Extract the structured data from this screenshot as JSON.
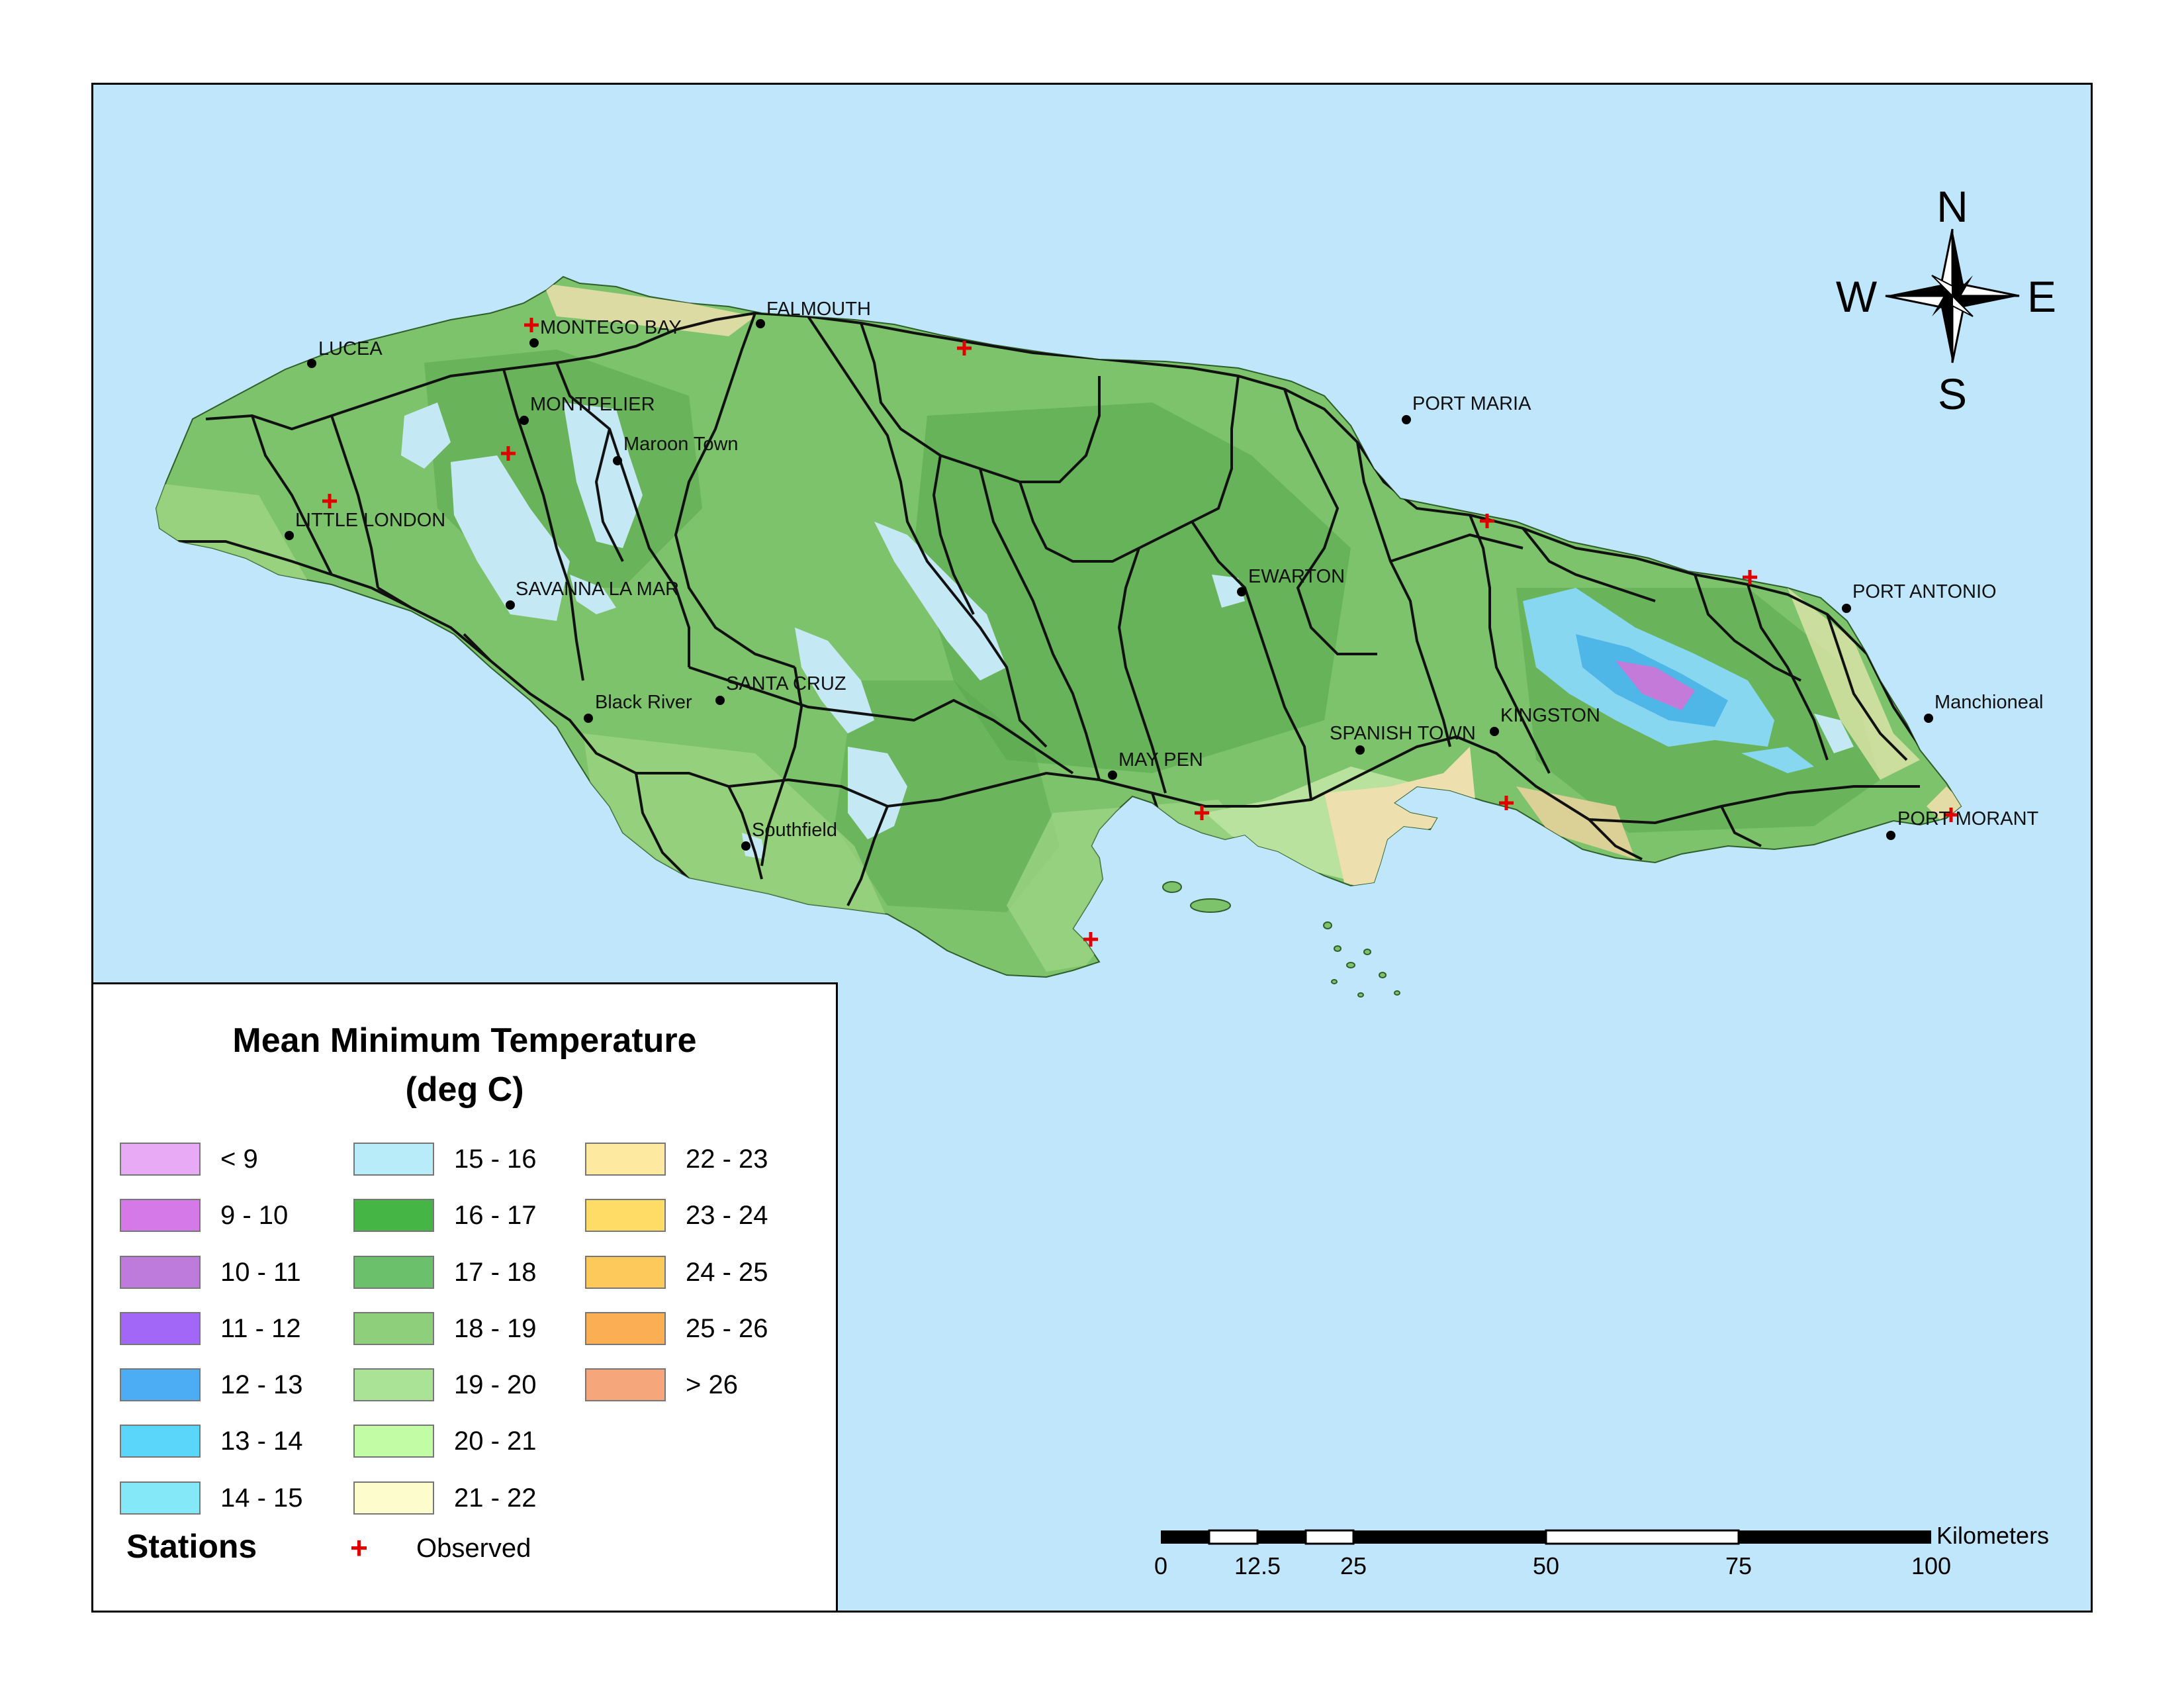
{
  "map": {
    "colors": {
      "sea": "#bfe6fb",
      "land_base": "#7cc36b",
      "land_dark": "#4e9e45",
      "lowland": "#b8e29e",
      "coastal_warm": "#eedfae",
      "highland": "#c5e8f5",
      "mountain_blue": "#4fb6e8",
      "mountain_purple": "#c47ad8",
      "road": "#111111",
      "station": "#e00000"
    },
    "places": [
      {
        "name": "LUCEA"
      },
      {
        "name": "MONTEGO BAY"
      },
      {
        "name": "FALMOUTH"
      },
      {
        "name": "MONTPELIER"
      },
      {
        "name": "Maroon Town"
      },
      {
        "name": "LITTLE LONDON"
      },
      {
        "name": "SAVANNA LA MAR"
      },
      {
        "name": "Black River"
      },
      {
        "name": "SANTA CRUZ"
      },
      {
        "name": "Southfield"
      },
      {
        "name": "MAY PEN"
      },
      {
        "name": "SPANISH TOWN"
      },
      {
        "name": "KINGSTON"
      },
      {
        "name": "EWARTON"
      },
      {
        "name": "PORT MARIA"
      },
      {
        "name": "PORT ANTONIO"
      },
      {
        "name": "Manchioneal"
      },
      {
        "name": "PORT MORANT"
      }
    ]
  },
  "compass": {
    "n": "N",
    "s": "S",
    "e": "E",
    "w": "W"
  },
  "legend": {
    "title_line1": "Mean Minimum Temperature",
    "title_line2": "(deg C)",
    "classes": [
      {
        "label": "< 9",
        "color": "#e8a9f5"
      },
      {
        "label": "9 - 10",
        "color": "#d579e8"
      },
      {
        "label": "10 - 11",
        "color": "#bf7bdc"
      },
      {
        "label": "11 - 12",
        "color": "#a367f7"
      },
      {
        "label": "12 - 13",
        "color": "#4dadf4"
      },
      {
        "label": "13 - 14",
        "color": "#5bd6fb"
      },
      {
        "label": "14 - 15",
        "color": "#84e8f8"
      },
      {
        "label": "15 - 16",
        "color": "#b9ecf9"
      },
      {
        "label": "16 - 17",
        "color": "#45b646"
      },
      {
        "label": "17 - 18",
        "color": "#6bc16b"
      },
      {
        "label": "18 - 19",
        "color": "#8dcf7a"
      },
      {
        "label": "19 - 20",
        "color": "#abe396"
      },
      {
        "label": "20 - 21",
        "color": "#c2fda6"
      },
      {
        "label": "21 - 22",
        "color": "#fdfccd"
      },
      {
        "label": "22 - 23",
        "color": "#fdeaa0"
      },
      {
        "label": "23 - 24",
        "color": "#fedc66"
      },
      {
        "label": "24 - 25",
        "color": "#fec95b"
      },
      {
        "label": "25 - 26",
        "color": "#fcae55"
      },
      {
        "label": "> 26",
        "color": "#f5a67a"
      }
    ],
    "stations_heading": "Stations",
    "stations_marker": "+",
    "stations_label": "Observed"
  },
  "scale_bar": {
    "unit": "Kilometers",
    "ticks": [
      "0",
      "12.5",
      "25",
      "50",
      "75",
      "100"
    ]
  }
}
